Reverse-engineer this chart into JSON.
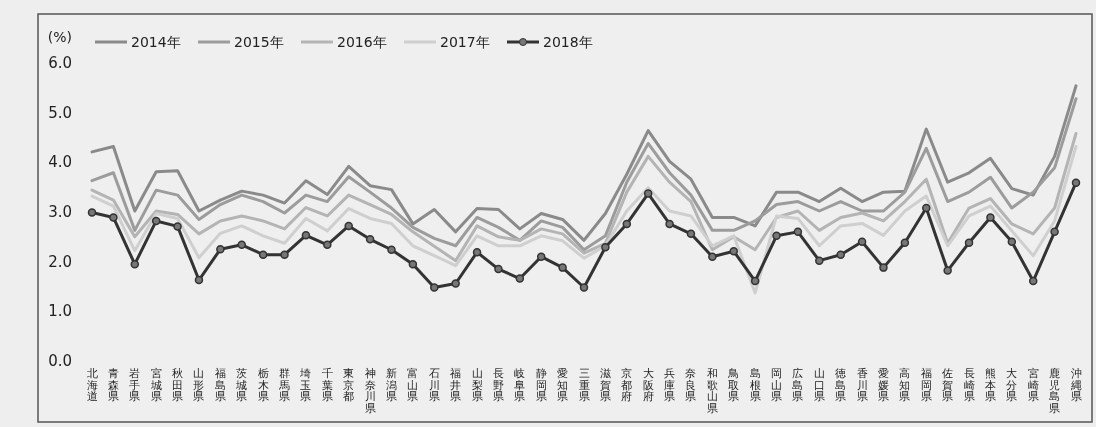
{
  "chart_data": {
    "type": "line",
    "ylabel": "(%)",
    "categories": [
      "北海道",
      "青森県",
      "岩手県",
      "宮城県",
      "秋田県",
      "山形県",
      "福島県",
      "茨城県",
      "栃木県",
      "群馬県",
      "埼玉県",
      "千葉県",
      "東京都",
      "神奈川県",
      "新潟県",
      "富山県",
      "石川県",
      "福井県",
      "山梨県",
      "長野県",
      "岐阜県",
      "静岡県",
      "愛知県",
      "三重県",
      "滋賀県",
      "京都府",
      "大阪府",
      "兵庫県",
      "奈良県",
      "和歌山県",
      "鳥取県",
      "島根県",
      "岡山県",
      "広島県",
      "山口県",
      "徳島県",
      "香川県",
      "愛媛県",
      "高知県",
      "福岡県",
      "佐賀県",
      "長崎県",
      "熊本県",
      "大分県",
      "宮崎県",
      "鹿児島県",
      "沖縄県"
    ],
    "series": [
      {
        "name": "2014年",
        "color": "#8a8a8a",
        "marker": "none",
        "values": [
          4.19,
          4.3,
          3.0,
          3.79,
          3.81,
          3.0,
          3.22,
          3.4,
          3.32,
          3.16,
          3.61,
          3.33,
          3.9,
          3.51,
          3.43,
          2.74,
          3.03,
          2.58,
          3.05,
          3.03,
          2.64,
          2.95,
          2.83,
          2.41,
          2.95,
          3.74,
          4.62,
          4.0,
          3.64,
          2.87,
          2.87,
          2.7,
          3.38,
          3.38,
          3.19,
          3.46,
          3.19,
          3.38,
          3.4,
          4.65,
          3.58,
          3.77,
          4.06,
          3.45,
          3.32,
          4.1,
          5.52
        ]
      },
      {
        "name": "2015年",
        "color": "#9c9c9c",
        "marker": "none",
        "values": [
          3.61,
          3.77,
          2.61,
          3.42,
          3.32,
          2.83,
          3.13,
          3.32,
          3.19,
          2.96,
          3.32,
          3.19,
          3.69,
          3.38,
          3.06,
          2.67,
          2.45,
          2.3,
          2.87,
          2.67,
          2.41,
          2.8,
          2.67,
          2.22,
          2.5,
          3.58,
          4.36,
          3.77,
          3.32,
          2.61,
          2.61,
          2.8,
          3.13,
          3.19,
          3.0,
          3.19,
          3.0,
          3.0,
          3.38,
          4.26,
          3.19,
          3.38,
          3.68,
          3.06,
          3.38,
          3.87,
          5.26
        ]
      },
      {
        "name": "2016年",
        "color": "#b4b4b4",
        "marker": "none",
        "values": [
          3.42,
          3.22,
          2.48,
          3.0,
          2.93,
          2.54,
          2.8,
          2.9,
          2.8,
          2.64,
          3.07,
          2.9,
          3.32,
          3.13,
          2.93,
          2.58,
          2.29,
          2.0,
          2.7,
          2.48,
          2.41,
          2.64,
          2.54,
          2.15,
          2.35,
          3.38,
          4.1,
          3.58,
          3.19,
          2.22,
          2.48,
          2.22,
          2.87,
          3.0,
          2.61,
          2.87,
          2.96,
          2.8,
          3.19,
          3.64,
          2.35,
          3.06,
          3.25,
          2.74,
          2.54,
          3.06,
          4.56
        ]
      },
      {
        "name": "2017年",
        "color": "#cfcfcf",
        "marker": "none",
        "values": [
          3.3,
          3.1,
          2.2,
          2.95,
          2.85,
          2.06,
          2.55,
          2.7,
          2.5,
          2.35,
          2.85,
          2.6,
          3.05,
          2.85,
          2.75,
          2.3,
          2.1,
          1.9,
          2.5,
          2.3,
          2.3,
          2.5,
          2.4,
          2.05,
          2.3,
          3.0,
          3.47,
          3.0,
          2.9,
          2.3,
          2.5,
          1.35,
          2.9,
          2.85,
          2.3,
          2.7,
          2.75,
          2.51,
          3.0,
          3.3,
          2.3,
          2.9,
          3.1,
          2.6,
          2.1,
          2.8,
          4.3
        ]
      },
      {
        "name": "2018年",
        "color": "#333333",
        "marker": "circle",
        "values": [
          2.97,
          2.87,
          1.93,
          2.8,
          2.69,
          1.61,
          2.23,
          2.32,
          2.12,
          2.12,
          2.51,
          2.32,
          2.7,
          2.43,
          2.22,
          1.93,
          1.46,
          1.54,
          2.17,
          1.83,
          1.64,
          2.08,
          1.86,
          1.46,
          2.27,
          2.74,
          3.35,
          2.74,
          2.54,
          2.08,
          2.19,
          1.59,
          2.5,
          2.58,
          2.0,
          2.12,
          2.38,
          1.86,
          2.36,
          3.06,
          1.8,
          2.36,
          2.87,
          2.38,
          1.59,
          2.58,
          3.57
        ]
      }
    ],
    "ylim": [
      0,
      6
    ],
    "yticks": [
      {
        "value": 0,
        "label": "0.0"
      },
      {
        "value": 1,
        "label": "1.0"
      },
      {
        "value": 2,
        "label": "2.0"
      },
      {
        "value": 3,
        "label": "3.0"
      },
      {
        "value": 4,
        "label": "4.0"
      },
      {
        "value": 5,
        "label": "5.0"
      },
      {
        "value": 6,
        "label": "6.0"
      }
    ],
    "legend": "top left",
    "grid": false,
    "line_style": "solid"
  }
}
